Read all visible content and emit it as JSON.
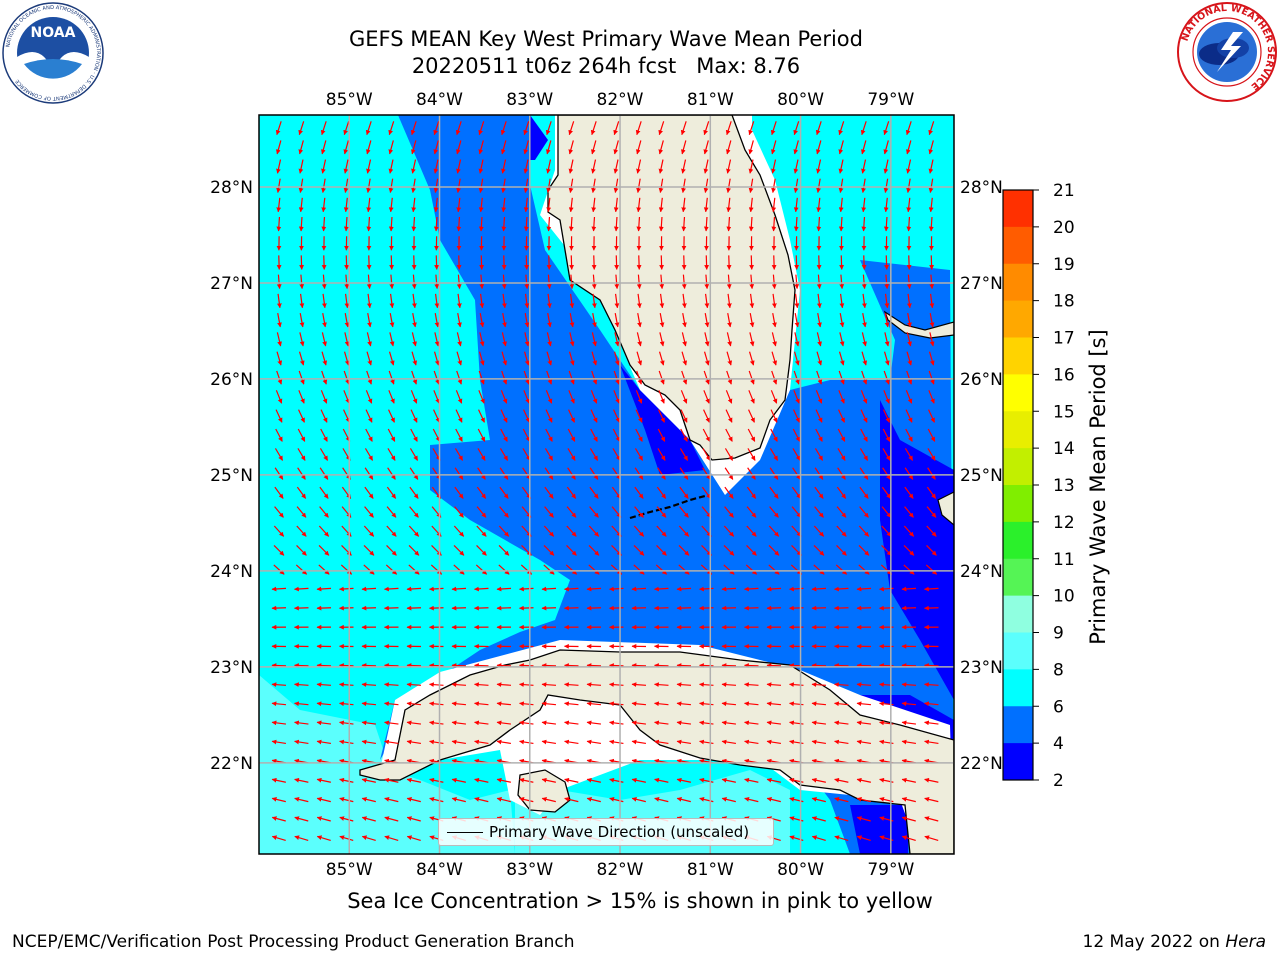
{
  "title": {
    "line1": "GEFS MEAN Key West Primary Wave Mean Period",
    "line2": "20220511 t06z 264h fcst   Max: 8.76"
  },
  "logos": {
    "noaa": {
      "text": "NOAA",
      "ring_text": "NATIONAL OCEANIC AND ATMOSPHERIC ADMINISTRATION · U.S. DEPARTMENT OF COMMERCE"
    },
    "nws": {
      "ring_text": "NATIONAL WEATHER SERVICE"
    }
  },
  "map": {
    "lon_labels": [
      "85°W",
      "84°W",
      "83°W",
      "82°W",
      "81°W",
      "80°W",
      "79°W"
    ],
    "lat_labels": [
      "28°N",
      "27°N",
      "26°N",
      "25°N",
      "24°N",
      "23°N",
      "22°N"
    ],
    "lon_range": [
      -86.0,
      -78.3
    ],
    "lat_range": [
      21.05,
      28.75
    ],
    "land_color": "#eeeddc",
    "coastline_color": "#000000",
    "grid_color": "#b0b0b0",
    "arrow_color": "#ff0000"
  },
  "legend": {
    "label": "Primary Wave Direction (unscaled)"
  },
  "colorbar": {
    "title": "Primary Wave Mean Period [s]",
    "ticks": [
      "2",
      "4",
      "6",
      "8",
      "9",
      "10",
      "11",
      "12",
      "13",
      "14",
      "15",
      "16",
      "17",
      "18",
      "19",
      "20",
      "21"
    ],
    "colors": [
      "#0000ff",
      "#0070ff",
      "#00ffff",
      "#5bfffd",
      "#8fffe0",
      "#55f455",
      "#2bf02b",
      "#80ee00",
      "#c2ef00",
      "#e8ee00",
      "#ffff00",
      "#ffd300",
      "#ffa800",
      "#ff8b00",
      "#ff5c00",
      "#ff3000",
      "#ff0000"
    ]
  },
  "note": "Sea Ice Concentration > 15% is shown in pink to yellow",
  "footer": {
    "left": "NCEP/EMC/Verification Post Processing Product Generation Branch",
    "date": "12 May 2022 on ",
    "host": "Hera"
  }
}
